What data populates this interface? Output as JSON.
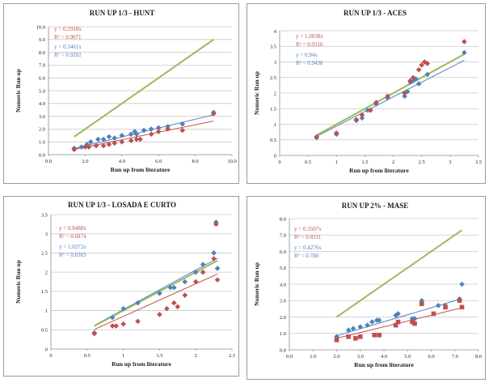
{
  "chart_data": [
    {
      "type": "scatter",
      "title": "RUN UP 1/3 - HUNT",
      "xlabel": "Run up from literature",
      "ylabel": "Numeric Run up",
      "xlim": [
        0.0,
        10.0
      ],
      "ylim": [
        0.0,
        10.0
      ],
      "xticks": [
        "0.0",
        "2.0",
        "4.0",
        "6.0",
        "8.0",
        "10.0"
      ],
      "yticks": [
        "0.0",
        "1.0",
        "2.0",
        "3.0",
        "4.0",
        "5.0",
        "6.0",
        "7.0",
        "8.0",
        "9.0",
        "10.0"
      ],
      "series": [
        {
          "name": "blue",
          "color": "#4f81bd",
          "marker": "diamond",
          "x": [
            1.4,
            1.8,
            2.1,
            2.3,
            2.7,
            3.0,
            3.3,
            3.6,
            4.0,
            4.5,
            4.7,
            4.8,
            5.2,
            5.6,
            6.0,
            6.5,
            7.3,
            9.0
          ],
          "y": [
            0.5,
            0.6,
            0.8,
            1.0,
            1.2,
            1.2,
            1.4,
            1.3,
            1.5,
            1.6,
            1.8,
            1.6,
            1.9,
            2.0,
            2.1,
            2.2,
            2.4,
            3.3
          ]
        },
        {
          "name": "red",
          "color": "#c0504d",
          "marker": "diamond",
          "x": [
            1.4,
            2.0,
            2.2,
            2.6,
            3.0,
            3.3,
            3.6,
            4.0,
            4.5,
            4.8,
            5.0,
            5.6,
            6.0,
            6.5,
            7.3,
            9.0
          ],
          "y": [
            0.4,
            0.6,
            0.6,
            0.7,
            0.7,
            0.8,
            0.9,
            1.0,
            1.1,
            1.2,
            1.2,
            1.6,
            1.8,
            2.0,
            1.9,
            3.2
          ]
        }
      ],
      "fits": [
        {
          "label": "y = 0.2918x",
          "slope": 0.2918,
          "color": "#c0504d",
          "x": [
            1.4,
            9.0
          ]
        },
        {
          "label": "y = 0.3461x",
          "slope": 0.3461,
          "color": "#4f81bd",
          "x": [
            1.4,
            9.0
          ]
        },
        {
          "slope": 1.0,
          "color": "#9bbb59",
          "x": [
            1.4,
            9.0
          ]
        }
      ],
      "annotations": [
        {
          "text": "y = 0.2918x",
          "color": "#c0504d"
        },
        {
          "text": "R² = 0.9071",
          "color": "#c0504d"
        },
        {
          "text": "y = 0.3461x",
          "color": "#4f81bd"
        },
        {
          "text": "R² = 0.9282",
          "color": "#4f81bd"
        }
      ]
    },
    {
      "type": "scatter",
      "title": "RUN UP 1/3 - ACES",
      "xlabel": "Run up from literature",
      "ylabel": "Numeric Run up",
      "xlim": [
        0.0,
        3.5
      ],
      "ylim": [
        0.0,
        4.0
      ],
      "xticks": [
        "0",
        "0.5",
        "1",
        "1.5",
        "2",
        "2.5",
        "3",
        "3.5"
      ],
      "yticks": [
        "0",
        "0.5",
        "1",
        "1.5",
        "2",
        "2.5",
        "3",
        "3.5",
        "4"
      ],
      "series": [
        {
          "name": "blue",
          "color": "#4f81bd",
          "marker": "diamond",
          "x": [
            0.65,
            1.0,
            1.35,
            1.45,
            1.55,
            1.7,
            1.9,
            2.2,
            2.25,
            2.3,
            2.35,
            2.4,
            2.45,
            2.6,
            3.25
          ],
          "y": [
            0.57,
            0.68,
            1.12,
            1.2,
            1.45,
            1.65,
            1.85,
            1.9,
            2.05,
            2.35,
            2.4,
            2.45,
            2.3,
            2.6,
            3.3
          ]
        },
        {
          "name": "red",
          "color": "#c0504d",
          "marker": "diamond",
          "x": [
            0.65,
            1.0,
            1.35,
            1.45,
            1.6,
            1.7,
            1.9,
            2.2,
            2.3,
            2.35,
            2.45,
            2.5,
            2.55,
            2.6,
            3.25
          ],
          "y": [
            0.6,
            0.72,
            1.15,
            1.3,
            1.45,
            1.7,
            1.9,
            2.0,
            2.4,
            2.5,
            2.75,
            2.9,
            3.0,
            2.95,
            3.65
          ]
        }
      ],
      "fits": [
        {
          "label": "y = 1.0038x",
          "slope": 1.0038,
          "color": "#c0504d",
          "x": [
            0.65,
            3.25
          ]
        },
        {
          "label": "y = 0.94x",
          "slope": 0.94,
          "color": "#4f81bd",
          "x": [
            0.65,
            3.25
          ]
        },
        {
          "slope": 1.0,
          "color": "#9bbb59",
          "x": [
            0.65,
            3.25
          ]
        }
      ],
      "annotations": [
        {
          "text": "y = 1.0038x",
          "color": "#c0504d"
        },
        {
          "text": "R² = 0.9316",
          "color": "#c0504d"
        },
        {
          "text": "y = 0.94x",
          "color": "#4f81bd"
        },
        {
          "text": "R² = 0.9438",
          "color": "#4f81bd"
        }
      ]
    },
    {
      "type": "scatter",
      "title": "RUN UP 1/3 - LOSADA  E CURTO",
      "xlabel": "Run up from literature",
      "ylabel": "Numeric Run up",
      "xlim": [
        0.0,
        2.5
      ],
      "ylim": [
        0.0,
        3.5
      ],
      "xticks": [
        "0",
        "0.5",
        "1",
        "1.5",
        "2",
        "2.5"
      ],
      "yticks": [
        "0",
        "0.5",
        "1",
        "1.5",
        "2",
        "2.5",
        "3",
        "3.5"
      ],
      "series": [
        {
          "name": "blue",
          "color": "#4f81bd",
          "marker": "diamond",
          "x": [
            0.6,
            0.85,
            1.0,
            1.2,
            1.5,
            1.65,
            1.7,
            1.85,
            2.0,
            2.1,
            2.25,
            2.3,
            2.28
          ],
          "y": [
            0.42,
            0.82,
            1.05,
            1.2,
            1.45,
            1.6,
            1.6,
            1.75,
            2.0,
            2.2,
            2.5,
            2.1,
            3.3
          ]
        },
        {
          "name": "red",
          "color": "#c0504d",
          "marker": "diamond",
          "x": [
            0.6,
            0.85,
            0.9,
            1.0,
            1.2,
            1.5,
            1.6,
            1.7,
            1.75,
            1.85,
            2.0,
            2.1,
            2.25,
            2.3,
            2.28
          ],
          "y": [
            0.4,
            0.6,
            0.6,
            0.65,
            0.72,
            0.9,
            1.05,
            1.2,
            1.1,
            1.4,
            1.75,
            2.0,
            2.35,
            1.8,
            3.25
          ]
        }
      ],
      "fits": [
        {
          "label": "y = 0.8488x",
          "slope": 0.8488,
          "color": "#c0504d",
          "x": [
            0.6,
            2.3
          ]
        },
        {
          "label": "y = 1.0272x",
          "slope": 1.0272,
          "color": "#4f81bd",
          "x": [
            0.6,
            2.3
          ]
        },
        {
          "slope": 1.0,
          "color": "#9bbb59",
          "x": [
            0.6,
            2.3
          ]
        }
      ],
      "annotations": [
        {
          "text": "y = 0.8488x",
          "color": "#c0504d"
        },
        {
          "text": "R² = 0.6874",
          "color": "#c0504d"
        },
        {
          "text": "y = 1.0272x",
          "color": "#4f81bd"
        },
        {
          "text": "R² = 0.8383",
          "color": "#4f81bd"
        }
      ]
    },
    {
      "type": "scatter",
      "title": "RUN UP 2% - MASE",
      "xlabel": "Run up from literature",
      "ylabel": "Numeric Run up",
      "xlim": [
        0.0,
        8.0
      ],
      "ylim": [
        0.0,
        8.0
      ],
      "xticks": [
        "0.0",
        "1.0",
        "2.0",
        "3.0",
        "4.0",
        "5.0",
        "6.0",
        "7.0",
        "8.0"
      ],
      "yticks": [
        "0.0",
        "1.0",
        "2.0",
        "3.0",
        "4.0",
        "5.0",
        "6.0",
        "7.0",
        "8.0"
      ],
      "series": [
        {
          "name": "blue",
          "color": "#4f81bd",
          "marker": "diamond",
          "x": [
            2.0,
            2.5,
            2.7,
            3.0,
            3.3,
            3.5,
            3.7,
            3.8,
            4.5,
            4.6,
            5.2,
            5.3,
            5.6,
            6.3,
            6.6,
            7.2,
            7.3
          ],
          "y": [
            0.8,
            1.2,
            1.3,
            1.4,
            1.5,
            1.7,
            1.8,
            1.8,
            2.1,
            2.2,
            1.9,
            1.9,
            3.0,
            2.7,
            2.7,
            3.1,
            4.0
          ]
        },
        {
          "name": "red",
          "color": "#c0504d",
          "marker": "square",
          "x": [
            2.0,
            2.5,
            2.8,
            3.0,
            3.6,
            3.8,
            4.5,
            4.6,
            5.2,
            5.3,
            5.6,
            6.1,
            6.6,
            7.2,
            7.3
          ],
          "y": [
            0.6,
            0.8,
            0.7,
            0.8,
            0.9,
            0.9,
            1.5,
            1.7,
            1.7,
            1.6,
            2.8,
            2.2,
            2.6,
            3.0,
            2.6
          ]
        }
      ],
      "fits": [
        {
          "label": "y = 0.3507x",
          "slope": 0.3507,
          "color": "#c0504d",
          "x": [
            2.0,
            7.3
          ]
        },
        {
          "label": "y = 0.4276x",
          "slope": 0.4276,
          "color": "#4f81bd",
          "x": [
            2.0,
            7.3
          ]
        },
        {
          "slope": 1.0,
          "color": "#9bbb59",
          "x": [
            2.0,
            7.3
          ]
        }
      ],
      "annotations": [
        {
          "text": "y = 0.3507x",
          "color": "#c0504d"
        },
        {
          "text": "R² = 0.8311",
          "color": "#c0504d"
        },
        {
          "text": "y = 0.4276x",
          "color": "#4f81bd"
        },
        {
          "text": "R² = 0.788",
          "color": "#4f81bd"
        }
      ]
    }
  ]
}
